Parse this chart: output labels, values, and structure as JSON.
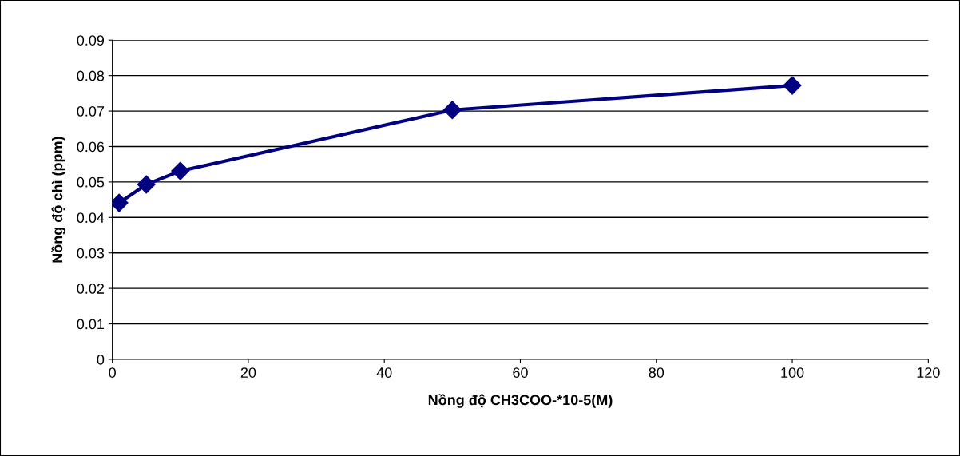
{
  "chart_data": {
    "type": "line",
    "xlabel": "Nồng độ CH3COO-*10-5(M)",
    "ylabel": "Nồng độ chì (ppm)",
    "x": [
      1,
      5,
      10,
      50,
      100
    ],
    "series": [
      {
        "color": "#000080",
        "values": [
          0.0441,
          0.0493,
          0.0531,
          0.0703,
          0.0772
        ]
      }
    ],
    "xlim": [
      0,
      120
    ],
    "xticks": [
      0,
      20,
      40,
      60,
      80,
      100,
      120
    ],
    "ylim": [
      0,
      0.09
    ],
    "yticks": [
      {
        "value": 0,
        "label": "0"
      },
      {
        "value": 0.01,
        "label": "0.01"
      },
      {
        "value": 0.02,
        "label": "0.02"
      },
      {
        "value": 0.03,
        "label": "0.03"
      },
      {
        "value": 0.04,
        "label": "0.04"
      },
      {
        "value": 0.05,
        "label": "0.05"
      },
      {
        "value": 0.06,
        "label": "0.06"
      },
      {
        "value": 0.07,
        "label": "0.07"
      },
      {
        "value": 0.08,
        "label": "0.08"
      },
      {
        "value": 0.09,
        "label": "0.09"
      }
    ],
    "grid": "y",
    "marker": "diamond",
    "line_style": "solid"
  }
}
